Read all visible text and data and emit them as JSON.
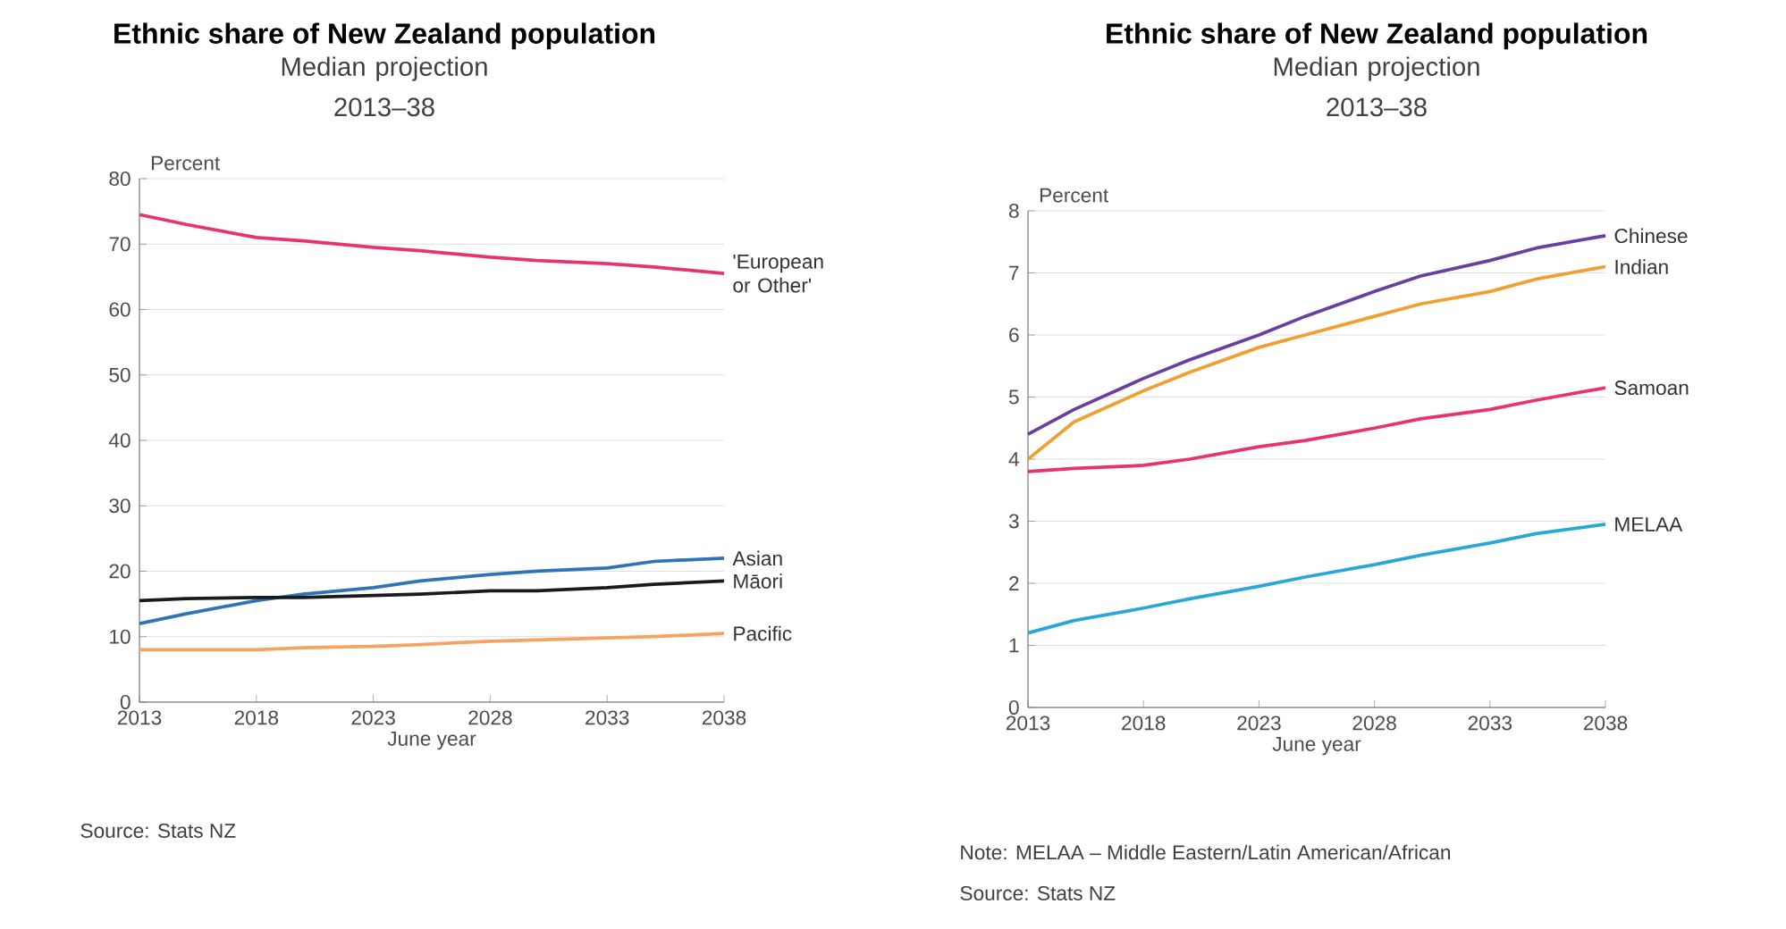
{
  "chart_data": [
    {
      "type": "line",
      "title": "Ethnic share of New Zealand population",
      "subtitle": "Median projection 2013–38",
      "xlabel": "June year",
      "ylabel": "Percent",
      "annotations": [
        "Source: Stats NZ"
      ],
      "x": [
        2013,
        2015,
        2018,
        2020,
        2023,
        2025,
        2028,
        2030,
        2033,
        2035,
        2038
      ],
      "series": [
        {
          "name": "'European or Other'",
          "color": "#e8336e",
          "values": [
            74.5,
            73,
            71,
            70.5,
            69.5,
            69,
            68,
            67.5,
            67,
            66.5,
            65.5
          ]
        },
        {
          "name": "Asian",
          "color": "#2e75b6",
          "values": [
            12,
            13.5,
            15.5,
            16.5,
            17.5,
            18.5,
            19.5,
            20,
            20.5,
            21.5,
            22
          ]
        },
        {
          "name": "Māori",
          "color": "#1a1a1a",
          "values": [
            15.5,
            15.8,
            16,
            16,
            16.3,
            16.5,
            17,
            17,
            17.5,
            18,
            18.5
          ]
        },
        {
          "name": "Pacific",
          "color": "#f4a460",
          "values": [
            8,
            8,
            8,
            8.3,
            8.5,
            8.8,
            9.3,
            9.5,
            9.8,
            10,
            10.5
          ]
        }
      ],
      "xlim": [
        2013,
        2038
      ],
      "xticks": [
        2013,
        2018,
        2023,
        2028,
        2033,
        2038
      ],
      "ylim": [
        0,
        80
      ],
      "yticks": [
        0,
        10,
        20,
        30,
        40,
        50,
        60,
        70,
        80
      ],
      "grid": "y"
    },
    {
      "type": "line",
      "title": "Ethnic share of New Zealand population",
      "subtitle": "Median projection 2013–38",
      "xlabel": "June year",
      "ylabel": "Percent",
      "annotations": [
        "Note: MELAA – Middle Eastern/Latin American/African",
        "Source: Stats NZ"
      ],
      "x": [
        2013,
        2015,
        2018,
        2020,
        2023,
        2025,
        2028,
        2030,
        2033,
        2035,
        2038
      ],
      "series": [
        {
          "name": "Chinese",
          "color": "#6a3fa0",
          "values": [
            4.4,
            4.8,
            5.3,
            5.6,
            6.0,
            6.3,
            6.7,
            6.95,
            7.2,
            7.4,
            7.6
          ]
        },
        {
          "name": "Indian",
          "color": "#f0a030",
          "values": [
            4.0,
            4.6,
            5.1,
            5.4,
            5.8,
            6.0,
            6.3,
            6.5,
            6.7,
            6.9,
            7.1
          ]
        },
        {
          "name": "Samoan",
          "color": "#e8336e",
          "values": [
            3.8,
            3.85,
            3.9,
            4.0,
            4.2,
            4.3,
            4.5,
            4.65,
            4.8,
            4.95,
            5.15
          ]
        },
        {
          "name": "MELAA",
          "color": "#29a8d8",
          "values": [
            1.2,
            1.4,
            1.6,
            1.75,
            1.95,
            2.1,
            2.3,
            2.45,
            2.65,
            2.8,
            2.95
          ]
        }
      ],
      "xlim": [
        2013,
        2038
      ],
      "xticks": [
        2013,
        2018,
        2023,
        2028,
        2033,
        2038
      ],
      "ylim": [
        0,
        8
      ],
      "yticks": [
        0,
        1,
        2,
        3,
        4,
        5,
        6,
        7,
        8
      ],
      "grid": "y"
    }
  ]
}
